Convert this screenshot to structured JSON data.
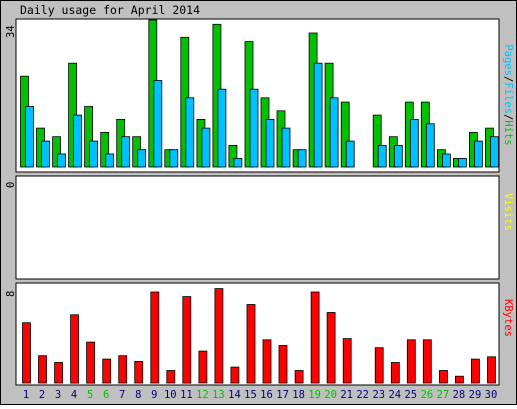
{
  "chart_data": {
    "type": "bar",
    "title": "Daily usage for April 2014",
    "categories": [
      "1",
      "2",
      "3",
      "4",
      "5",
      "6",
      "7",
      "8",
      "9",
      "10",
      "11",
      "12",
      "13",
      "14",
      "15",
      "16",
      "17",
      "18",
      "19",
      "20",
      "21",
      "22",
      "23",
      "24",
      "25",
      "26",
      "27",
      "28",
      "29",
      "30"
    ],
    "weekend_days": [
      "5",
      "6",
      "12",
      "13",
      "19",
      "20",
      "26",
      "27"
    ],
    "colors": {
      "background": "#c0c0c0",
      "plot_area": "#ffffff",
      "hits": "#00c000",
      "files": "#00c0ff",
      "pages": "#00c0ff",
      "visits": "#ffff00",
      "kbytes": "#ff0000",
      "weekend_label": "#00c000",
      "weekday_label": "#000080",
      "axis_text": "#000000"
    },
    "panels": [
      {
        "id": "pages-files-hits",
        "ylabel_parts": [
          {
            "text": "Pages",
            "color": "#00c0ff"
          },
          {
            "text": "/",
            "color": "#000000"
          },
          {
            "text": "Files",
            "color": "#00c0ff"
          },
          {
            "text": "/",
            "color": "#000000"
          },
          {
            "text": "Hits",
            "color": "#00c000"
          }
        ],
        "y_tick_label": "34",
        "ylim": [
          0,
          34
        ],
        "series": [
          {
            "name": "Hits",
            "color": "#00c000",
            "values": [
              21,
              9,
              7,
              24,
              14,
              8,
              11,
              7,
              34,
              4,
              30,
              11,
              33,
              5,
              29,
              16,
              13,
              4,
              31,
              24,
              15,
              0,
              12,
              7,
              15,
              15,
              4,
              2,
              8,
              9
            ]
          },
          {
            "name": "Files",
            "color": "#00c0ff",
            "values": [
              14,
              6,
              3,
              12,
              6,
              3,
              7,
              4,
              20,
              4,
              16,
              9,
              18,
              2,
              18,
              11,
              9,
              4,
              24,
              16,
              6,
              0,
              5,
              5,
              11,
              10,
              3,
              2,
              6,
              7
            ]
          }
        ]
      },
      {
        "id": "visits",
        "ylabel_parts": [
          {
            "text": "Visits",
            "color": "#ffff00"
          }
        ],
        "y_tick_label": "0",
        "ylim": [
          0,
          1
        ],
        "series": [
          {
            "name": "Visits",
            "color": "#ffff00",
            "values": [
              0,
              0,
              0,
              0,
              0,
              0,
              0,
              0,
              0,
              0,
              0,
              0,
              0,
              0,
              0,
              0,
              0,
              0,
              0,
              0,
              0,
              0,
              0,
              0,
              0,
              0,
              0,
              0,
              0,
              0
            ]
          }
        ]
      },
      {
        "id": "kbytes",
        "ylabel_parts": [
          {
            "text": "KBytes",
            "color": "#ff0000"
          }
        ],
        "y_tick_label": "8",
        "ylim": [
          0,
          8
        ],
        "series": [
          {
            "name": "KBytes",
            "color": "#ff0000",
            "values": [
              5.3,
              2.4,
              1.8,
              6.0,
              3.6,
              2.1,
              2.4,
              1.9,
              8.0,
              1.1,
              7.6,
              2.8,
              8.3,
              1.4,
              6.9,
              3.8,
              3.3,
              1.1,
              8.0,
              6.2,
              3.9,
              0,
              3.1,
              1.8,
              3.8,
              3.8,
              1.1,
              0.6,
              2.1,
              2.3
            ]
          }
        ]
      }
    ]
  }
}
